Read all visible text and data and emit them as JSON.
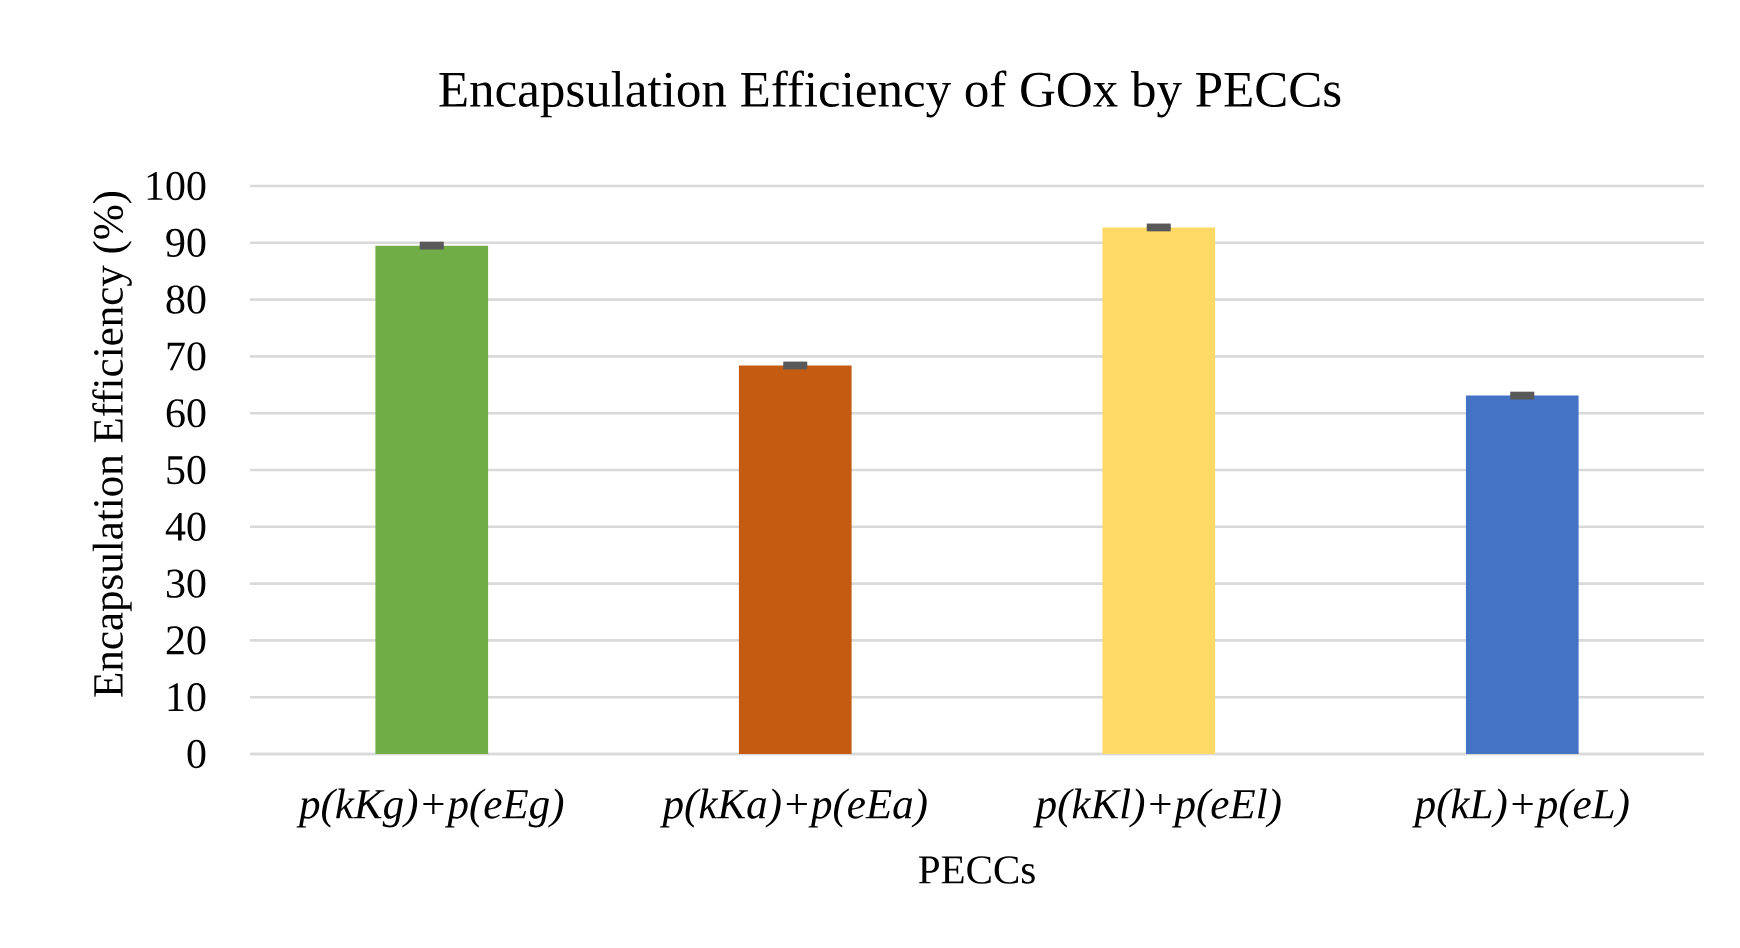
{
  "chart_data": {
    "type": "bar",
    "title": "Encapsulation Efficiency of GOx by PECCs",
    "xlabel": "PECCs",
    "ylabel": "Encapsulation Efficiency (%)",
    "categories": [
      "p(kKg)+p(eEg)",
      "p(kKa)+p(eEa)",
      "p(kKl)+p(eEl)",
      "p(kL)+p(eL)"
    ],
    "values": [
      89.5,
      68.4,
      92.7,
      63.1
    ],
    "colors": [
      "#70ad47",
      "#c55a11",
      "#ffd966",
      "#4472c4"
    ],
    "errors": [
      0.3,
      0.3,
      0.3,
      0.3
    ],
    "ylim": [
      0,
      100
    ],
    "yticks": [
      0,
      10,
      20,
      30,
      40,
      50,
      60,
      70,
      80,
      90,
      100
    ],
    "grid": "y"
  }
}
